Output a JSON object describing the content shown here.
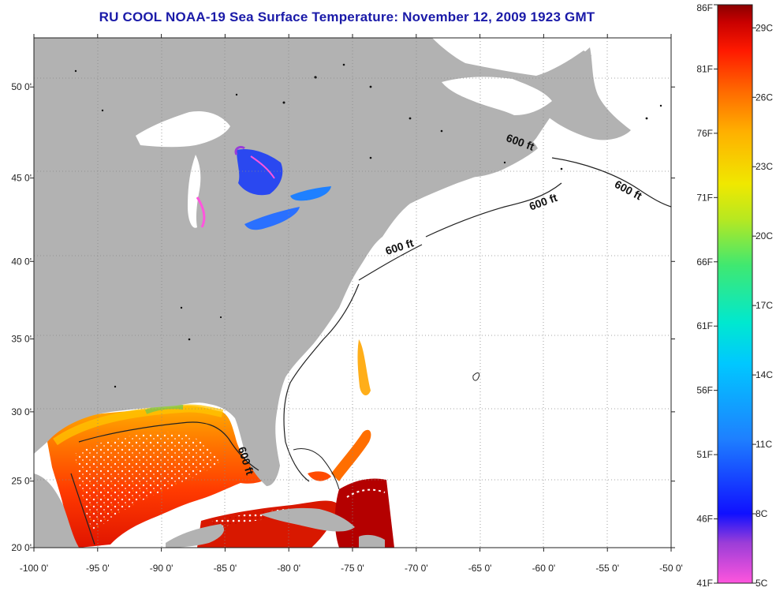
{
  "title": "RU COOL  NOAA-19  Sea Surface Temperature:  November 12, 2009 1923 GMT",
  "map": {
    "longitude_labels": [
      "-100 0'",
      "-95 0'",
      "-90 0'",
      "-85 0'",
      "-80 0'",
      "-75 0'",
      "-70 0'",
      "-65 0'",
      "-60 0'",
      "-55 0'",
      "-50 0'"
    ],
    "latitude_labels": [
      "50 0'",
      "45 0'",
      "40 0'",
      "35 0'",
      "30 0'",
      "25 0'",
      "20 0'"
    ],
    "lon_range": [
      -100,
      -50
    ],
    "lat_range": [
      20,
      52.5
    ],
    "isobath_labels": [
      {
        "text": "600 ft",
        "lon": -63.0,
        "lat": 47.1
      },
      {
        "text": "600 ft",
        "lon": -54.5,
        "lat": 44.5
      },
      {
        "text": "600 ft",
        "lon": -61.0,
        "lat": 43.1
      },
      {
        "text": "600 ft",
        "lon": -72.3,
        "lat": 40.4
      },
      {
        "text": "600 ft",
        "lon": -84.0,
        "lat": 27.4
      }
    ],
    "colors": {
      "land": "#b2b2b2",
      "ocean_no_data": "#ffffff",
      "grid": "#888888",
      "title": "#1a1aa8"
    }
  },
  "colorbar": {
    "fahrenheit_labels": [
      "86F",
      "81F",
      "76F",
      "71F",
      "66F",
      "61F",
      "56F",
      "51F",
      "46F",
      "41F"
    ],
    "celsius_labels": [
      "29C",
      "26C",
      "23C",
      "20C",
      "17C",
      "14C",
      "11C",
      "8C",
      "5C"
    ],
    "range_f": [
      41,
      86
    ],
    "range_c": [
      5,
      30
    ],
    "palette": [
      "#ff55dd",
      "#9a3dd8",
      "#1010ff",
      "#1e80ff",
      "#00c8ff",
      "#00e8d0",
      "#40e870",
      "#b8e820",
      "#f0e800",
      "#ffb000",
      "#ff6a00",
      "#ff1a00",
      "#c80000",
      "#8a0000"
    ]
  }
}
